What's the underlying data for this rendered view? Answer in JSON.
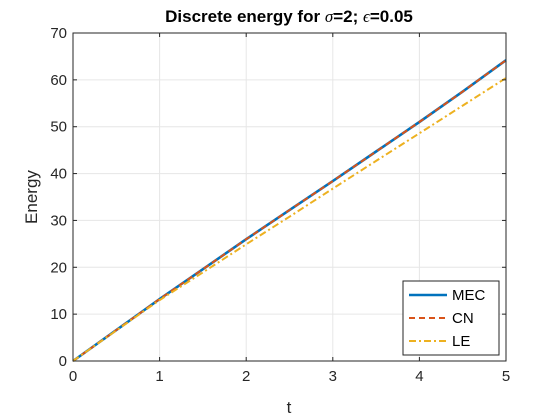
{
  "chart_data": {
    "type": "line",
    "title_prefix": "Discrete energy for ",
    "title_sigma_symbol": "σ",
    "title_sigma_value": "=2; ",
    "title_eps_symbol": "ϵ",
    "title_eps_value": "=0.05",
    "xlabel": "t",
    "ylabel": "Energy",
    "xlim": [
      0,
      5
    ],
    "ylim": [
      0,
      70
    ],
    "xticks": [
      0,
      1,
      2,
      3,
      4,
      5
    ],
    "yticks": [
      0,
      10,
      20,
      30,
      40,
      50,
      60,
      70
    ],
    "grid": true,
    "legend_position": "bottom-right",
    "series": [
      {
        "name": "MEC",
        "color": "#0072BD",
        "style": "solid",
        "x": [
          0,
          0.5,
          1,
          1.5,
          2,
          2.5,
          3,
          3.5,
          4,
          4.5,
          5
        ],
        "y": [
          0,
          6.6,
          13.2,
          19.6,
          26.0,
          32.2,
          38.4,
          44.7,
          51.0,
          57.5,
          64.2
        ]
      },
      {
        "name": "CN",
        "color": "#D95319",
        "style": "dashed",
        "x": [
          0,
          0.5,
          1,
          1.5,
          2,
          2.5,
          3,
          3.5,
          4,
          4.5,
          5
        ],
        "y": [
          0,
          6.6,
          13.2,
          19.6,
          26.0,
          32.2,
          38.4,
          44.7,
          51.0,
          57.5,
          64.2
        ]
      },
      {
        "name": "LE",
        "color": "#EDB120",
        "style": "dashdot",
        "x": [
          0,
          0.5,
          1,
          1.5,
          2,
          2.5,
          3,
          3.5,
          4,
          4.5,
          5
        ],
        "y": [
          0,
          6.5,
          13.0,
          18.9,
          24.9,
          30.8,
          36.8,
          42.7,
          48.6,
          54.5,
          60.4
        ]
      }
    ]
  }
}
